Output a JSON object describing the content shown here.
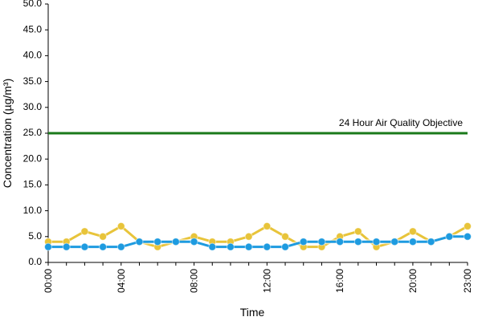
{
  "chart_data": {
    "type": "line",
    "xlabel": "Time",
    "ylabel": "Concentration (µg/m³)",
    "categories": [
      "00:00",
      null,
      null,
      null,
      "04:00",
      null,
      null,
      null,
      "08:00",
      null,
      null,
      null,
      "12:00",
      null,
      null,
      null,
      "16:00",
      null,
      null,
      null,
      "20:00",
      null,
      null,
      "23:00"
    ],
    "series": [
      {
        "color": "#e8c43a",
        "values": [
          4,
          4,
          6,
          5,
          7,
          4,
          3,
          4,
          5,
          4,
          4,
          5,
          7,
          5,
          3,
          3,
          5,
          6,
          3,
          4,
          6,
          4,
          5,
          7
        ]
      },
      {
        "color": "#1e9be0",
        "values": [
          3,
          3,
          3,
          3,
          3,
          4,
          4,
          4,
          4,
          3,
          3,
          3,
          3,
          3,
          4,
          4,
          4,
          4,
          4,
          4,
          4,
          4,
          5,
          5
        ]
      }
    ],
    "reference_line": {
      "value": 25,
      "label": "24 Hour Air Quality Objective",
      "color": "#1a7a1a"
    },
    "ylim": [
      0,
      50
    ],
    "yticks": [
      {
        "value": 0,
        "label": "0.0"
      },
      {
        "value": 5,
        "label": "5.0"
      },
      {
        "value": 10,
        "label": "10.0"
      },
      {
        "value": 15,
        "label": "15.0"
      },
      {
        "value": 20,
        "label": "20.0"
      },
      {
        "value": 25,
        "label": "25.0"
      },
      {
        "value": 30,
        "label": "30.0"
      },
      {
        "value": 35,
        "label": "35.0"
      },
      {
        "value": 40,
        "label": "40.0"
      },
      {
        "value": 45,
        "label": "45.0"
      },
      {
        "value": 50,
        "label": "50.0"
      }
    ],
    "grid": false
  }
}
